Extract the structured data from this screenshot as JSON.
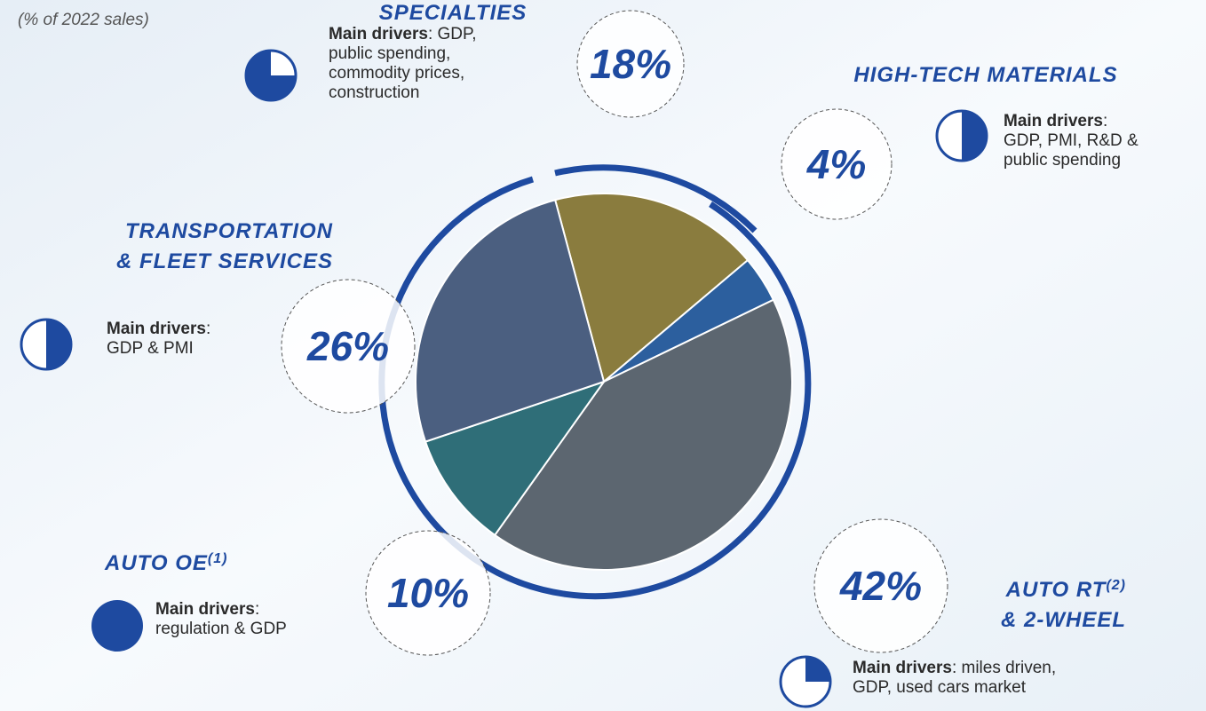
{
  "chart_data": {
    "type": "pie",
    "subtitle": "(% of 2022 sales)",
    "categories": [
      "SPECIALTIES",
      "HIGH-TECH MATERIALS",
      "AUTO RT & 2-WHEEL",
      "AUTO OE",
      "TRANSPORTATION & FLEET SERVICES"
    ],
    "footnotes": [
      null,
      null,
      "(2)",
      "(1)",
      null
    ],
    "values": [
      18,
      4,
      42,
      10,
      26
    ],
    "value_labels": [
      "18%",
      "4%",
      "42%",
      "10%",
      "26%"
    ],
    "colors": [
      "#8a7c3e",
      "#2c5f9e",
      "#5c6670",
      "#2f6e78",
      "#4b5f80"
    ],
    "drivers": [
      {
        "label": "Main drivers",
        "lines": [
          ": GDP,",
          "public spending,",
          "commodity prices,",
          "construction"
        ]
      },
      {
        "label": "Main drivers",
        "lines": [
          ":",
          "GDP, PMI, R&D &",
          "public spending"
        ]
      },
      {
        "label": "Main drivers",
        "lines": [
          ": miles driven,",
          "GDP, used cars market"
        ]
      },
      {
        "label": "Main drivers",
        "lines": [
          ":",
          "regulation & GDP"
        ]
      },
      {
        "label": "Main drivers",
        "lines": [
          ":",
          "GDP & PMI"
        ]
      }
    ]
  }
}
